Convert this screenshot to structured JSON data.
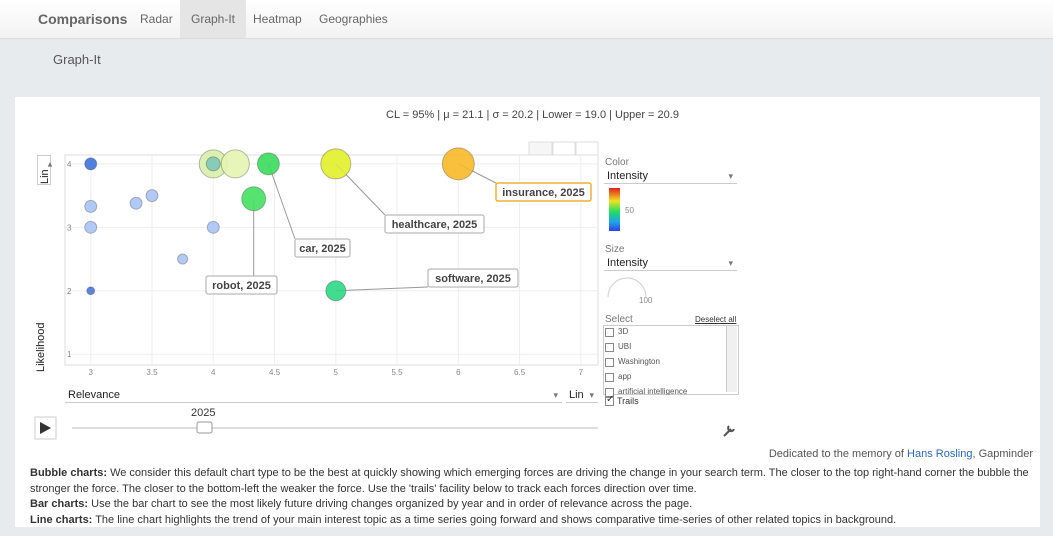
{
  "nav": {
    "brand": "Comparisons",
    "tabs": [
      "Radar",
      "Graph-It",
      "Heatmap",
      "Geographies"
    ]
  },
  "page_title": "Graph-It",
  "stats": "CL = 95% | μ = 21.1 | σ = 20.2 | Lower = 19.0 | Upper = 20.9",
  "chart_data": {
    "type": "scatter",
    "x_label": "Relevance",
    "y_label": "Likelihood",
    "x_scale": "Lin",
    "y_scale": "Lin",
    "xlim": [
      2.79,
      7.14
    ],
    "ylim": [
      0.83,
      4.14
    ],
    "xticks": [
      3,
      3.5,
      4,
      4.5,
      5,
      5.5,
      6,
      6.5,
      7
    ],
    "yticks": [
      1,
      2,
      3,
      4
    ],
    "grid": true,
    "points": [
      {
        "x": 4.0,
        "y": 4,
        "size": 77,
        "color": "#d8f0a8"
      },
      {
        "x": 4.18,
        "y": 4,
        "size": 77,
        "color": "#e4f5b0"
      },
      {
        "x": 6.0,
        "y": 4,
        "size": 100,
        "color": "#f7b928",
        "label": "insurance, 2025"
      },
      {
        "x": 5.0,
        "y": 4,
        "size": 88,
        "color": "#e2ef2a",
        "label": "healthcare, 2025"
      },
      {
        "x": 4.45,
        "y": 4,
        "size": 47,
        "color": "#38dc5c",
        "label": "car, 2025"
      },
      {
        "x": 4.33,
        "y": 3.45,
        "size": 56,
        "color": "#44e060",
        "label": "robot, 2025"
      },
      {
        "x": 5.0,
        "y": 2,
        "size": 39,
        "color": "#2ed884",
        "label": "software, 2025"
      },
      {
        "x": 4.0,
        "y": 4,
        "size": 19,
        "color": "#7cc8b8"
      },
      {
        "x": 3.0,
        "y": 4,
        "size": 14,
        "color": "#3f72dc"
      },
      {
        "x": 3.0,
        "y": 3.33,
        "size": 14,
        "color": "#a8c4f4"
      },
      {
        "x": 3.0,
        "y": 3,
        "size": 14,
        "color": "#a8c4f4"
      },
      {
        "x": 3.0,
        "y": 2,
        "size": 6,
        "color": "#4a78dc"
      },
      {
        "x": 3.37,
        "y": 3.38,
        "size": 14,
        "color": "#a8c4f4"
      },
      {
        "x": 3.5,
        "y": 3.5,
        "size": 14,
        "color": "#a8c4f4"
      },
      {
        "x": 3.75,
        "y": 2.5,
        "size": 10,
        "color": "#a8c4f4"
      },
      {
        "x": 4.0,
        "y": 3,
        "size": 14,
        "color": "#a8c4f4"
      }
    ]
  },
  "color_panel": {
    "title": "Color",
    "selected": "Intensity",
    "mid_label": "50"
  },
  "size_panel": {
    "title": "Size",
    "selected": "Intensity",
    "max_label": "100"
  },
  "select_panel": {
    "title": "Select",
    "deselect": "Deselect all",
    "items": [
      "3D",
      "UBI",
      "Washington",
      "app",
      "artificial intelligence"
    ],
    "trails": "Trails"
  },
  "timeline": {
    "year": "2025"
  },
  "credit": {
    "prefix": "Dedicated to the memory of ",
    "link": "Hans Rosling",
    "suffix": ", Gapminder"
  },
  "notes": [
    {
      "lead": "Bubble charts:",
      "text": " We consider this default chart type to be the best at quickly showing which emerging forces are driving the change in your search term. The closer to the top right-hand corner the bubble the stronger the force. The closer to the bottom-left the weaker the force. Use the 'trails' facility below to track each forces direction over time."
    },
    {
      "lead": "Bar charts:",
      "text": " Use the bar chart to see the most likely future driving changes organized by year and in order of relevance across the page."
    },
    {
      "lead": "Line charts:",
      "text": " The line chart highlights the trend of your main interest topic as a time series going forward and shows comparative time-series of other related topics in background."
    }
  ]
}
